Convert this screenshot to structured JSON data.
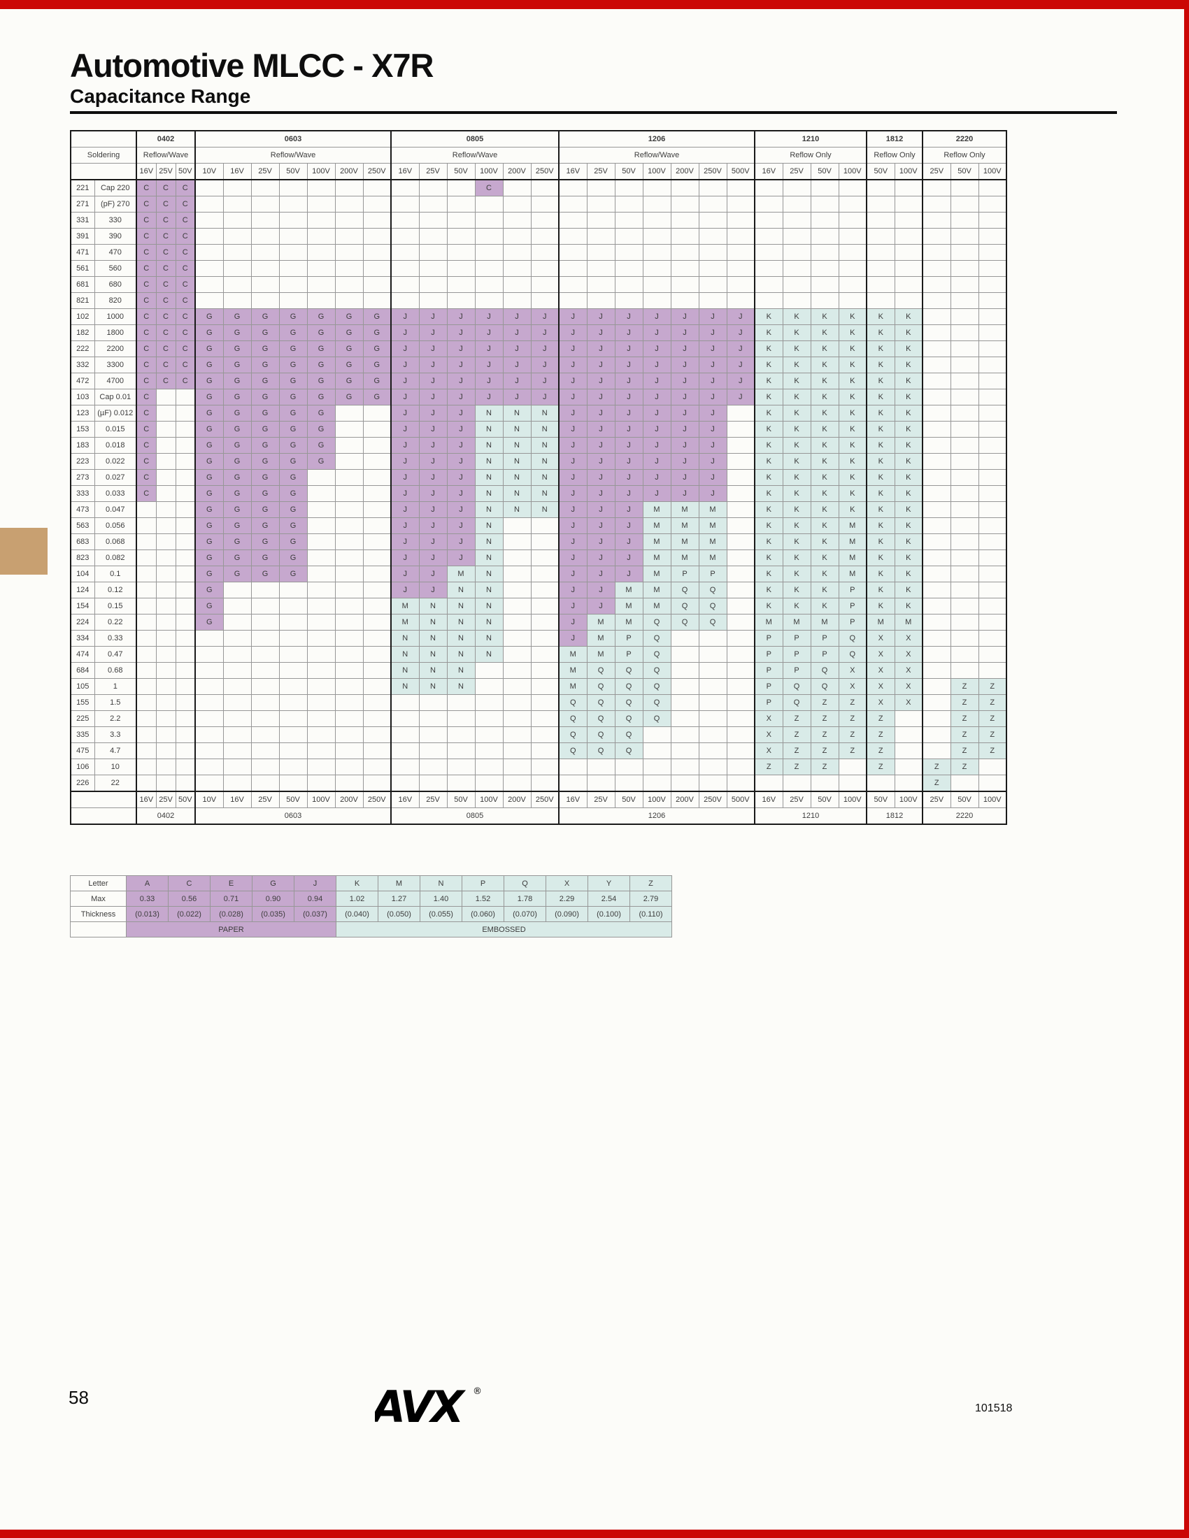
{
  "title": "Automotive MLCC - X7R",
  "subtitle": "Capacitance Range",
  "page": {
    "number": "58",
    "doc_number": "101518"
  },
  "footer": {
    "logo_text": "AVX",
    "registered": "®"
  },
  "colors": {
    "paper": "#c6a8ce",
    "embossed": "#d9ebe8",
    "edge_red": "#cb0706",
    "tab_tan": "#c8a071"
  },
  "letters": {
    "paper": [
      "A",
      "C",
      "E",
      "G",
      "J"
    ],
    "embossed": [
      "K",
      "M",
      "N",
      "P",
      "Q",
      "X",
      "Y",
      "Z"
    ]
  },
  "table": {
    "soldering_label": "Soldering",
    "groups": [
      {
        "name": "0402",
        "soldering": "Reflow/Wave",
        "voltages": [
          "16V",
          "25V",
          "50V"
        ]
      },
      {
        "name": "0603",
        "soldering": "Reflow/Wave",
        "voltages": [
          "10V",
          "16V",
          "25V",
          "50V",
          "100V",
          "200V",
          "250V"
        ]
      },
      {
        "name": "0805",
        "soldering": "Reflow/Wave",
        "voltages": [
          "16V",
          "25V",
          "50V",
          "100V",
          "200V",
          "250V"
        ]
      },
      {
        "name": "1206",
        "soldering": "Reflow/Wave",
        "voltages": [
          "16V",
          "25V",
          "50V",
          "100V",
          "200V",
          "250V",
          "500V"
        ]
      },
      {
        "name": "1210",
        "soldering": "Reflow Only",
        "voltages": [
          "16V",
          "25V",
          "50V",
          "100V"
        ]
      },
      {
        "name": "1812",
        "soldering": "Reflow Only",
        "voltages": [
          "50V",
          "100V"
        ]
      },
      {
        "name": "2220",
        "soldering": "Reflow Only",
        "voltages": [
          "25V",
          "50V",
          "100V"
        ]
      }
    ],
    "rows": [
      {
        "code": "221",
        "label": "Cap 220",
        "cells": [
          "CCC",
          "",
          "...C",
          "",
          "",
          "",
          ""
        ]
      },
      {
        "code": "271",
        "label": "(pF) 270",
        "cells": [
          "CCC",
          "",
          "",
          "",
          "",
          "",
          ""
        ]
      },
      {
        "code": "331",
        "label": "330",
        "cells": [
          "CCC",
          "",
          "",
          "",
          "",
          "",
          ""
        ]
      },
      {
        "code": "391",
        "label": "390",
        "cells": [
          "CCC",
          "",
          "",
          "",
          "",
          "",
          ""
        ]
      },
      {
        "code": "471",
        "label": "470",
        "cells": [
          "CCC",
          "",
          "",
          "",
          "",
          "",
          ""
        ]
      },
      {
        "code": "561",
        "label": "560",
        "cells": [
          "CCC",
          "",
          "",
          "",
          "",
          "",
          ""
        ]
      },
      {
        "code": "681",
        "label": "680",
        "cells": [
          "CCC",
          "",
          "",
          "",
          "",
          "",
          ""
        ]
      },
      {
        "code": "821",
        "label": "820",
        "cells": [
          "CCC",
          "",
          "",
          "",
          "",
          "",
          ""
        ]
      },
      {
        "code": "102",
        "label": "1000",
        "cells": [
          "CCC",
          "GGGGGGG",
          "JJJJJJ",
          "JJJJJJJ",
          "KKKK",
          "KK",
          ""
        ]
      },
      {
        "code": "182",
        "label": "1800",
        "cells": [
          "CCC",
          "GGGGGGG",
          "JJJJJJ",
          "JJJJJJJ",
          "KKKK",
          "KK",
          ""
        ]
      },
      {
        "code": "222",
        "label": "2200",
        "cells": [
          "CCC",
          "GGGGGGG",
          "JJJJJJ",
          "JJJJJJJ",
          "KKKK",
          "KK",
          ""
        ]
      },
      {
        "code": "332",
        "label": "3300",
        "cells": [
          "CCC",
          "GGGGGGG",
          "JJJJJJ",
          "JJJJJJJ",
          "KKKK",
          "KK",
          ""
        ]
      },
      {
        "code": "472",
        "label": "4700",
        "cells": [
          "CCC",
          "GGGGGGG",
          "JJJJJJ",
          "JJJJJJJ",
          "KKKK",
          "KK",
          ""
        ]
      },
      {
        "code": "103",
        "label": "Cap 0.01",
        "cells": [
          "C",
          "GGGGGGG",
          "JJJJJJ",
          "JJJJJJJ",
          "KKKK",
          "KK",
          ""
        ]
      },
      {
        "code": "123",
        "label": "(µF) 0.012",
        "cells": [
          "C",
          "GGGGG",
          "JJJNNN",
          "JJJJJJ",
          "KKKK",
          "KK",
          ""
        ]
      },
      {
        "code": "153",
        "label": "0.015",
        "cells": [
          "C",
          "GGGGG",
          "JJJNNN",
          "JJJJJJ",
          "KKKK",
          "KK",
          ""
        ]
      },
      {
        "code": "183",
        "label": "0.018",
        "cells": [
          "C",
          "GGGGG",
          "JJJNNN",
          "JJJJJJ",
          "KKKK",
          "KK",
          ""
        ]
      },
      {
        "code": "223",
        "label": "0.022",
        "cells": [
          "C",
          "GGGGG",
          "JJJNNN",
          "JJJJJJ",
          "KKKK",
          "KK",
          ""
        ]
      },
      {
        "code": "273",
        "label": "0.027",
        "cells": [
          "C",
          "GGGG",
          "JJJNNN",
          "JJJJJJ",
          "KKKK",
          "KK",
          ""
        ]
      },
      {
        "code": "333",
        "label": "0.033",
        "cells": [
          "C",
          "GGGG",
          "JJJNNN",
          "JJJJJJ",
          "KKKK",
          "KK",
          ""
        ]
      },
      {
        "code": "473",
        "label": "0.047",
        "cells": [
          "",
          "GGGG",
          "JJJNNN",
          "JJJMMM",
          "KKKK",
          "KK",
          ""
        ]
      },
      {
        "code": "563",
        "label": "0.056",
        "cells": [
          "",
          "GGGG",
          "JJJN",
          "JJJMMM",
          "KKKM",
          "KK",
          ""
        ]
      },
      {
        "code": "683",
        "label": "0.068",
        "cells": [
          "",
          "GGGG",
          "JJJN",
          "JJJMMM",
          "KKKM",
          "KK",
          ""
        ]
      },
      {
        "code": "823",
        "label": "0.082",
        "cells": [
          "",
          "GGGG",
          "JJJN",
          "JJJMMM",
          "KKKM",
          "KK",
          ""
        ]
      },
      {
        "code": "104",
        "label": "0.1",
        "cells": [
          "",
          "GGGG",
          "JJMN",
          "JJJMPP",
          "KKKM",
          "KK",
          ""
        ]
      },
      {
        "code": "124",
        "label": "0.12",
        "cells": [
          "",
          "G",
          "JJNN",
          "JJMMQQ",
          "KKKP",
          "KK",
          ""
        ]
      },
      {
        "code": "154",
        "label": "0.15",
        "cells": [
          "",
          "G",
          "MNNN",
          "JJMMQQ",
          "KKKP",
          "KK",
          ""
        ]
      },
      {
        "code": "224",
        "label": "0.22",
        "cells": [
          "",
          "G",
          "MNNN",
          "JMMQQQ",
          "MMMP",
          "MM",
          ""
        ]
      },
      {
        "code": "334",
        "label": "0.33",
        "cells": [
          "",
          "",
          "NNNN",
          "JMPQ",
          "PPPQ",
          "XX",
          ""
        ]
      },
      {
        "code": "474",
        "label": "0.47",
        "cells": [
          "",
          "",
          "NNNN",
          "MMPQ",
          "PPPQ",
          "XX",
          ""
        ]
      },
      {
        "code": "684",
        "label": "0.68",
        "cells": [
          "",
          "",
          "NNN",
          "MQQQ",
          "PPQX",
          "XX",
          ""
        ]
      },
      {
        "code": "105",
        "label": "1",
        "cells": [
          "",
          "",
          "NNN",
          "MQQQ",
          "PQQX",
          "XX",
          ".ZZ"
        ]
      },
      {
        "code": "155",
        "label": "1.5",
        "cells": [
          "",
          "",
          "",
          "QQQQ",
          "PQZZ",
          "XX",
          ".ZZ"
        ]
      },
      {
        "code": "225",
        "label": "2.2",
        "cells": [
          "",
          "",
          "",
          "QQQQ",
          "XZZZ",
          "Z",
          ".ZZ"
        ]
      },
      {
        "code": "335",
        "label": "3.3",
        "cells": [
          "",
          "",
          "",
          "QQQ",
          "XZZZ",
          "Z",
          ".ZZ"
        ]
      },
      {
        "code": "475",
        "label": "4.7",
        "cells": [
          "",
          "",
          "",
          "QQQ",
          "XZZZ",
          "Z",
          ".ZZ"
        ]
      },
      {
        "code": "106",
        "label": "10",
        "cells": [
          "",
          "",
          "",
          "",
          "ZZZ",
          "Z",
          "ZZ"
        ]
      },
      {
        "code": "226",
        "label": "22",
        "cells": [
          "",
          "",
          "",
          "",
          "",
          "",
          "Z"
        ]
      }
    ]
  },
  "legend": {
    "row_labels": [
      "Letter",
      "Max",
      "Thickness"
    ],
    "entries": [
      {
        "letter": "A",
        "max": "0.33",
        "inches": "(0.013)",
        "type": "paper"
      },
      {
        "letter": "C",
        "max": "0.56",
        "inches": "(0.022)",
        "type": "paper"
      },
      {
        "letter": "E",
        "max": "0.71",
        "inches": "(0.028)",
        "type": "paper"
      },
      {
        "letter": "G",
        "max": "0.90",
        "inches": "(0.035)",
        "type": "paper"
      },
      {
        "letter": "J",
        "max": "0.94",
        "inches": "(0.037)",
        "type": "paper"
      },
      {
        "letter": "K",
        "max": "1.02",
        "inches": "(0.040)",
        "type": "embossed"
      },
      {
        "letter": "M",
        "max": "1.27",
        "inches": "(0.050)",
        "type": "embossed"
      },
      {
        "letter": "N",
        "max": "1.40",
        "inches": "(0.055)",
        "type": "embossed"
      },
      {
        "letter": "P",
        "max": "1.52",
        "inches": "(0.060)",
        "type": "embossed"
      },
      {
        "letter": "Q",
        "max": "1.78",
        "inches": "(0.070)",
        "type": "embossed"
      },
      {
        "letter": "X",
        "max": "2.29",
        "inches": "(0.090)",
        "type": "embossed"
      },
      {
        "letter": "Y",
        "max": "2.54",
        "inches": "(0.100)",
        "type": "embossed"
      },
      {
        "letter": "Z",
        "max": "2.79",
        "inches": "(0.110)",
        "type": "embossed"
      }
    ],
    "paper_label": "PAPER",
    "embossed_label": "EMBOSSED"
  }
}
